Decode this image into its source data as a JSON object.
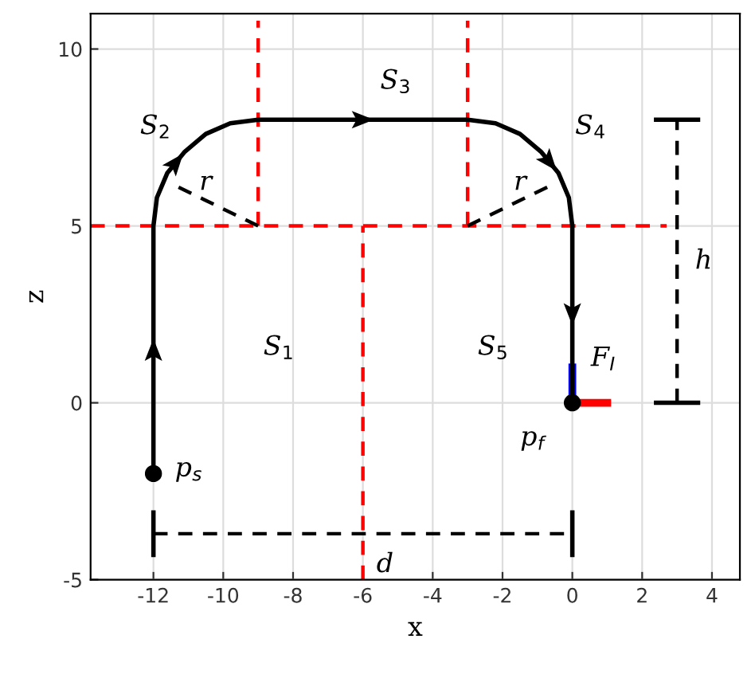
{
  "chart_data": {
    "type": "line",
    "xlabel": "x",
    "ylabel": "z",
    "xlim": [
      -13.8,
      4.8
    ],
    "ylim": [
      -5,
      11
    ],
    "xticks": [
      -12,
      -10,
      -8,
      -6,
      -4,
      -2,
      0,
      2,
      4
    ],
    "yticks": [
      -5,
      0,
      5,
      10
    ],
    "grid": true,
    "series": [
      {
        "type": "line",
        "color": "#000000",
        "line_style": "solid",
        "x": [
          -12,
          -12,
          -11.9,
          -11.6,
          -11.1,
          -10.5,
          -9.8,
          -9,
          -3,
          -2.2,
          -1.5,
          -0.9,
          -0.4,
          -0.1,
          0,
          0
        ],
        "values": [
          -2,
          5,
          5.8,
          6.5,
          7.1,
          7.6,
          7.9,
          8,
          8,
          7.9,
          7.6,
          7.1,
          6.5,
          5.8,
          5,
          0
        ]
      },
      {
        "type": "line",
        "color": "#ff0000",
        "line_style": "dashed",
        "x": [
          -13.8,
          2.7
        ],
        "values": [
          5,
          5
        ]
      },
      {
        "type": "line",
        "color": "#ff0000",
        "line_style": "dashed",
        "x": [
          -9,
          -9
        ],
        "values": [
          5,
          10.8
        ]
      },
      {
        "type": "line",
        "color": "#ff0000",
        "line_style": "dashed",
        "x": [
          -3,
          -3
        ],
        "values": [
          5,
          10.8
        ]
      },
      {
        "type": "line",
        "color": "#ff0000",
        "line_style": "dashed",
        "x": [
          -6,
          -6
        ],
        "values": [
          -5,
          5
        ]
      },
      {
        "type": "line",
        "color": "#000000",
        "line_style": "dashed",
        "x": [
          -9,
          -11.5
        ],
        "values": [
          5,
          6.2
        ]
      },
      {
        "type": "line",
        "color": "#000000",
        "line_style": "dashed",
        "x": [
          -3,
          -0.5
        ],
        "values": [
          5,
          6.2
        ]
      },
      {
        "type": "line",
        "color": "#000000",
        "line_style": "dashed",
        "x": [
          3,
          3
        ],
        "values": [
          0,
          8
        ]
      },
      {
        "type": "line",
        "color": "#000000",
        "line_style": "solid",
        "x": [
          2.4,
          3.6
        ],
        "values": [
          8,
          8
        ]
      },
      {
        "type": "line",
        "color": "#000000",
        "line_style": "solid",
        "x": [
          2.4,
          3.6
        ],
        "values": [
          0,
          0
        ]
      },
      {
        "type": "line",
        "color": "#000000",
        "line_style": "dashed",
        "x": [
          -12,
          0
        ],
        "values": [
          -3.7,
          -3.7
        ]
      },
      {
        "type": "line",
        "color": "#000000",
        "line_style": "solid",
        "x": [
          -12,
          -12
        ],
        "values": [
          -3.1,
          -4.3
        ]
      },
      {
        "type": "line",
        "color": "#000000",
        "line_style": "solid",
        "x": [
          0,
          0
        ],
        "values": [
          -3.1,
          -4.3
        ]
      },
      {
        "type": "line",
        "color": "#0000ff",
        "line_style": "solid",
        "x": [
          0,
          0
        ],
        "values": [
          0,
          1
        ]
      },
      {
        "type": "line",
        "color": "#ff0000",
        "line_style": "solid",
        "x": [
          0,
          1
        ],
        "values": [
          0,
          0
        ]
      },
      {
        "type": "scatter",
        "color": "#000000",
        "marker": "circle",
        "x": [
          -12,
          0
        ],
        "values": [
          -2,
          0
        ]
      }
    ],
    "annotations": [
      "S$_{1}$",
      "S$_{2}$",
      "S$_{3}$",
      "S$_{4}$",
      "S$_{5}$",
      {
        "text": "r",
        "x": -10.25,
        "y": 5.6
      },
      {
        "text": "r",
        "x": -1.75,
        "y": 5.6
      },
      {
        "text": "h",
        "x": 3,
        "y": 4
      },
      {
        "text": "d",
        "x": -6,
        "y": -3.7
      },
      {
        "text": "p$_{s}$",
        "x": -12,
        "y": -2
      },
      {
        "text": "p$_{f}$",
        "x": 0,
        "y": 0
      },
      {
        "text": "F$_{I}$",
        "x": 0,
        "y": 1
      }
    ]
  }
}
